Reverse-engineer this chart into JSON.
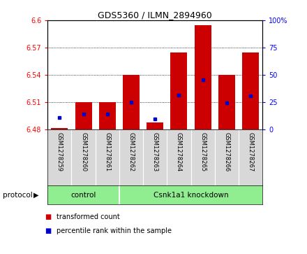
{
  "title": "GDS5360 / ILMN_2894960",
  "samples": [
    "GSM1278259",
    "GSM1278260",
    "GSM1278261",
    "GSM1278262",
    "GSM1278263",
    "GSM1278264",
    "GSM1278265",
    "GSM1278266",
    "GSM1278267"
  ],
  "red_values": [
    6.482,
    6.51,
    6.51,
    6.54,
    6.488,
    6.565,
    6.595,
    6.54,
    6.565
  ],
  "blue_values": [
    6.493,
    6.497,
    6.497,
    6.51,
    6.492,
    6.518,
    6.535,
    6.509,
    6.517
  ],
  "ymin": 6.48,
  "ymax": 6.6,
  "yticks": [
    6.48,
    6.51,
    6.54,
    6.57,
    6.6
  ],
  "ytick_labels": [
    "6.48",
    "6.51",
    "6.54",
    "6.57",
    "6.6"
  ],
  "y2ticks": [
    0,
    25,
    50,
    75,
    100
  ],
  "y2tick_labels": [
    "0",
    "25",
    "50",
    "75",
    "100%"
  ],
  "groups": [
    {
      "label": "control",
      "start": 0,
      "end": 3
    },
    {
      "label": "Csnk1a1 knockdown",
      "start": 3,
      "end": 9
    }
  ],
  "group_color": "#90EE90",
  "bar_color": "#CC0000",
  "blue_color": "#0000CC",
  "protocol_label": "protocol",
  "legend": [
    {
      "color": "#CC0000",
      "label": "transformed count"
    },
    {
      "color": "#0000CC",
      "label": "percentile rank within the sample"
    }
  ],
  "bar_bottom": 6.48,
  "bar_width": 0.7,
  "figsize": [
    4.4,
    3.63
  ],
  "dpi": 100
}
